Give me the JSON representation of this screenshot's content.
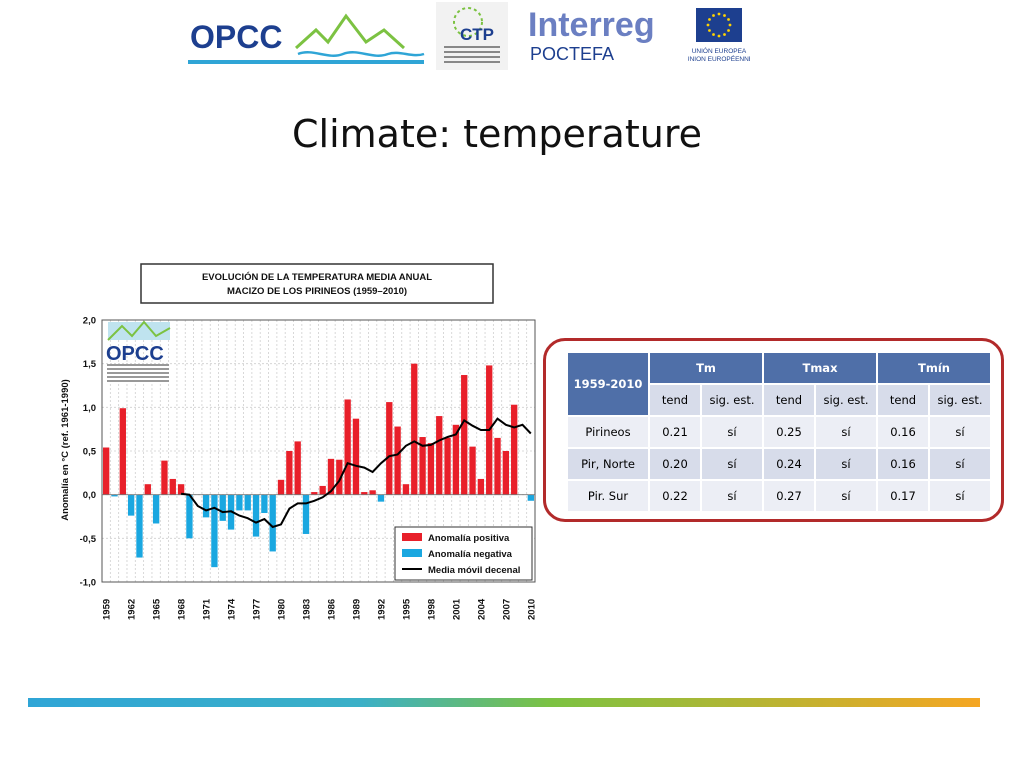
{
  "slide_title": "Climate: temperature",
  "logos": {
    "opcc_text": "OPCC",
    "ctp_text": "CTP",
    "interreg_text": "Interreg",
    "poctefa_text": "POCTEFA",
    "eu_line1": "UNIÓN EUROPEA",
    "eu_line2": "UNION EUROPÉENNE"
  },
  "colors": {
    "positive": "#e8202a",
    "negative": "#1aa7e0",
    "line": "#000000",
    "table_header": "#4f6fa8",
    "panel_border": "#b22a2a"
  },
  "chart_data": {
    "type": "bar",
    "title_line1": "EVOLUCIÓN DE LA TEMPERATURA MEDIA ANUAL",
    "title_line2": "MACIZO DE LOS PIRINEOS  (1959–2010)",
    "ylabel": "Anomalía en °C (ref. 1961-1990)",
    "ylim": [
      -1.0,
      2.0
    ],
    "yticks": [
      "2,0",
      "1,5",
      "1,0",
      "0,5",
      "0,0",
      "-0,5",
      "-1,0"
    ],
    "ytick_values": [
      2.0,
      1.5,
      1.0,
      0.5,
      0.0,
      -0.5,
      -1.0
    ],
    "xtick_labels": [
      "1959",
      "1962",
      "1965",
      "1968",
      "1971",
      "1974",
      "1977",
      "1980",
      "1983",
      "1986",
      "1989",
      "1992",
      "1995",
      "1998",
      "2001",
      "2004",
      "2007",
      "2010"
    ],
    "grid": true,
    "legend_position": "bottom-right",
    "legend": {
      "positive": "Anomalía positiva",
      "negative": "Anomalía negativa",
      "line": "Media móvil decenal"
    },
    "years": [
      1959,
      1960,
      1961,
      1962,
      1963,
      1964,
      1965,
      1966,
      1967,
      1968,
      1969,
      1970,
      1971,
      1972,
      1973,
      1974,
      1975,
      1976,
      1977,
      1978,
      1979,
      1980,
      1981,
      1982,
      1983,
      1984,
      1985,
      1986,
      1987,
      1988,
      1989,
      1990,
      1991,
      1992,
      1993,
      1994,
      1995,
      1996,
      1997,
      1998,
      1999,
      2000,
      2001,
      2002,
      2003,
      2004,
      2005,
      2006,
      2007,
      2008,
      2009,
      2010
    ],
    "values": [
      0.54,
      -0.02,
      0.99,
      -0.24,
      -0.72,
      0.12,
      -0.33,
      0.39,
      0.18,
      0.12,
      -0.5,
      0.0,
      -0.26,
      -0.83,
      -0.3,
      -0.4,
      -0.18,
      -0.18,
      -0.48,
      -0.21,
      -0.65,
      0.17,
      0.5,
      0.61,
      -0.45,
      0.03,
      0.1,
      0.41,
      0.4,
      1.09,
      0.87,
      0.03,
      0.05,
      -0.08,
      1.06,
      0.78,
      0.12,
      1.5,
      0.66,
      0.59,
      0.9,
      0.65,
      0.8,
      1.37,
      0.55,
      0.18,
      1.48,
      0.65,
      0.5,
      1.03,
      0.0,
      -0.07
    ],
    "moving_average": [
      null,
      null,
      null,
      null,
      null,
      null,
      null,
      null,
      null,
      0.01,
      0.0,
      -0.13,
      -0.18,
      -0.15,
      -0.2,
      -0.19,
      -0.24,
      -0.27,
      -0.32,
      -0.28,
      -0.37,
      -0.34,
      -0.16,
      -0.1,
      -0.1,
      -0.07,
      -0.03,
      0.04,
      0.16,
      0.36,
      0.33,
      0.31,
      0.26,
      0.36,
      0.44,
      0.46,
      0.56,
      0.61,
      0.56,
      0.57,
      0.62,
      0.66,
      0.69,
      0.85,
      0.79,
      0.74,
      0.74,
      0.87,
      0.8,
      0.77,
      0.8,
      0.7
    ]
  },
  "table": {
    "period": "1959-2010",
    "groups": [
      "Tm",
      "Tmax",
      "Tmín"
    ],
    "subheaders": [
      "tend",
      "sig. est.",
      "tend",
      "sig. est.",
      "tend",
      "sig. est."
    ],
    "rows": [
      {
        "name": "Pirineos",
        "cells": [
          "0.21",
          "sí",
          "0.25",
          "sí",
          "0.16",
          "sí"
        ]
      },
      {
        "name": "Pir, Norte",
        "cells": [
          "0.20",
          "sí",
          "0.24",
          "sí",
          "0.16",
          "sí"
        ]
      },
      {
        "name": "Pir. Sur",
        "cells": [
          "0.22",
          "sí",
          "0.27",
          "sí",
          "0.17",
          "sí"
        ]
      }
    ]
  }
}
